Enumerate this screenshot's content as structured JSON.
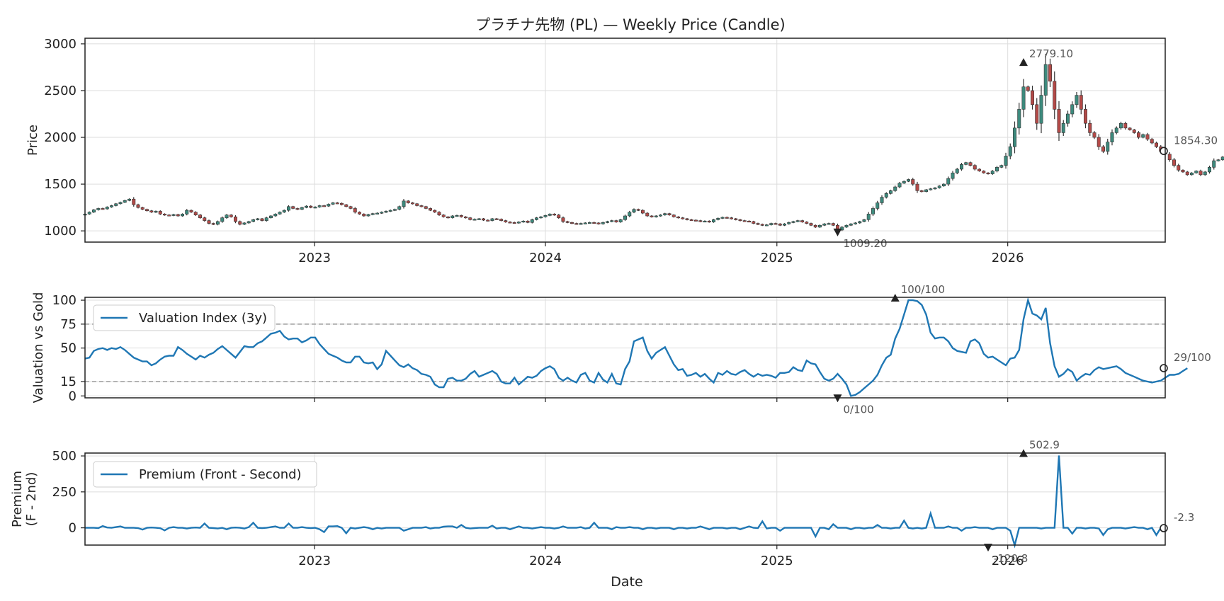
{
  "figure_title": "プラチナ先物 (PL) — Weekly Price (Candle)",
  "shared_xlabel": "Date",
  "colors": {
    "up": "#3d8a7d",
    "down": "#b44a48",
    "wick": "#333333",
    "line": "#1f77b4",
    "grid": "#dddddd",
    "threshold": "#999999",
    "annotation": "#555555"
  },
  "chart_data": [
    {
      "type": "candlestick",
      "title": "プラチナ先物 (PL) — Weekly Price (Candle)",
      "xlabel": "",
      "ylabel": "Price",
      "x_range": [
        "2022-01-03",
        "2026-09-07"
      ],
      "x_ticks": [
        "2023",
        "2024",
        "2025",
        "2026"
      ],
      "ylim": [
        880,
        3060
      ],
      "y_ticks": [
        1000,
        1500,
        2000,
        2500,
        3000
      ],
      "grid": true,
      "annotations": {
        "max": {
          "date": "2026-01-26",
          "value": 2779.1,
          "label": "2779.10"
        },
        "min": {
          "date": "2025-04-07",
          "value": 1009.2,
          "label": "1009.20"
        },
        "last": {
          "date": "2026-09-07",
          "value": 1854.3,
          "label": "1854.30"
        }
      },
      "close": [
        1180,
        1200,
        1225,
        1240,
        1235,
        1255,
        1270,
        1290,
        1305,
        1325,
        1340,
        1280,
        1250,
        1230,
        1215,
        1200,
        1210,
        1180,
        1170,
        1165,
        1175,
        1160,
        1180,
        1220,
        1200,
        1170,
        1140,
        1110,
        1080,
        1070,
        1100,
        1140,
        1170,
        1150,
        1100,
        1070,
        1085,
        1100,
        1120,
        1130,
        1110,
        1140,
        1160,
        1180,
        1200,
        1220,
        1260,
        1240,
        1230,
        1250,
        1265,
        1250,
        1255,
        1270,
        1265,
        1285,
        1300,
        1295,
        1280,
        1260,
        1240,
        1200,
        1180,
        1160,
        1175,
        1185,
        1190,
        1200,
        1210,
        1220,
        1230,
        1260,
        1320,
        1300,
        1290,
        1270,
        1260,
        1240,
        1220,
        1200,
        1170,
        1150,
        1140,
        1160,
        1165,
        1150,
        1140,
        1120,
        1125,
        1130,
        1115,
        1110,
        1130,
        1125,
        1110,
        1095,
        1090,
        1085,
        1095,
        1105,
        1090,
        1120,
        1140,
        1150,
        1165,
        1180,
        1170,
        1140,
        1100,
        1090,
        1080,
        1075,
        1080,
        1085,
        1090,
        1085,
        1075,
        1090,
        1100,
        1110,
        1095,
        1120,
        1160,
        1200,
        1230,
        1220,
        1190,
        1160,
        1150,
        1160,
        1170,
        1185,
        1170,
        1150,
        1140,
        1130,
        1120,
        1115,
        1110,
        1100,
        1105,
        1095,
        1120,
        1135,
        1145,
        1140,
        1130,
        1120,
        1110,
        1105,
        1100,
        1080,
        1070,
        1060,
        1065,
        1080,
        1075,
        1060,
        1075,
        1090,
        1100,
        1110,
        1095,
        1080,
        1060,
        1040,
        1060,
        1075,
        1080,
        1060,
        1009,
        1040,
        1060,
        1075,
        1085,
        1100,
        1120,
        1180,
        1240,
        1300,
        1360,
        1400,
        1430,
        1470,
        1510,
        1530,
        1550,
        1500,
        1430,
        1420,
        1440,
        1450,
        1460,
        1480,
        1500,
        1560,
        1620,
        1660,
        1710,
        1730,
        1700,
        1660,
        1640,
        1620,
        1610,
        1640,
        1680,
        1700,
        1800,
        1900,
        2100,
        2300,
        2540,
        2500,
        2350,
        2150,
        2450,
        2779,
        2600,
        2300,
        2050,
        2150,
        2250,
        2350,
        2450,
        2300,
        2150,
        2050,
        2000,
        1900,
        1850,
        1950,
        2050,
        2100,
        2150,
        2100,
        2080,
        2050,
        2000,
        2030,
        1980,
        1940,
        1900,
        1850,
        1820,
        1760,
        1700,
        1650,
        1630,
        1600,
        1620,
        1640,
        1600,
        1630,
        1680,
        1750,
        1760,
        1790,
        1820,
        1854.3
      ]
    },
    {
      "type": "line",
      "title": "",
      "xlabel": "",
      "ylabel": "Valuation vs Gold",
      "x_range": [
        "2022-01-03",
        "2026-09-07"
      ],
      "ylim": [
        -2,
        103
      ],
      "y_ticks": [
        0,
        15,
        50,
        75,
        100
      ],
      "thresholds": [
        15,
        75
      ],
      "grid": true,
      "legend": {
        "placement": "top-left",
        "label": "Valuation Index (3y)"
      },
      "series": [
        {
          "name": "Valuation Index (3y)",
          "values": [
            39,
            40,
            47,
            49,
            50,
            48,
            50,
            49,
            51,
            48,
            44,
            40,
            38,
            36,
            36,
            32,
            34,
            38,
            41,
            42,
            42,
            51,
            48,
            44,
            41,
            38,
            42,
            40,
            43,
            45,
            49,
            52,
            48,
            44,
            40,
            46,
            52,
            51,
            51,
            55,
            57,
            61,
            65,
            66,
            68,
            62,
            59,
            60,
            60,
            56,
            58,
            61,
            61,
            54,
            49,
            44,
            42,
            40,
            37,
            35,
            35,
            41,
            41,
            35,
            34,
            35,
            28,
            33,
            47,
            42,
            37,
            32,
            30,
            33,
            29,
            27,
            23,
            22,
            20,
            12,
            9,
            9,
            18,
            19,
            16,
            16,
            18,
            23,
            26,
            20,
            22,
            24,
            26,
            23,
            15,
            13,
            13,
            19,
            12,
            16,
            20,
            19,
            21,
            26,
            29,
            31,
            28,
            19,
            16,
            19,
            16,
            14,
            22,
            24,
            16,
            14,
            24,
            17,
            14,
            23,
            13,
            12,
            28,
            36,
            57,
            59,
            61,
            47,
            39,
            45,
            48,
            51,
            42,
            33,
            27,
            28,
            21,
            22,
            24,
            20,
            23,
            18,
            14,
            24,
            22,
            26,
            23,
            22,
            25,
            27,
            23,
            20,
            23,
            21,
            22,
            21,
            19,
            24,
            24,
            25,
            30,
            27,
            26,
            37,
            34,
            33,
            25,
            18,
            16,
            18,
            23,
            18,
            12,
            0,
            1,
            4,
            8,
            12,
            16,
            22,
            32,
            40,
            43,
            60,
            70,
            85,
            100,
            100,
            99,
            95,
            85,
            66,
            60,
            61,
            61,
            57,
            50,
            47,
            46,
            45,
            57,
            59,
            55,
            44,
            40,
            41,
            38,
            35,
            32,
            39,
            40,
            48,
            80,
            100,
            86,
            84,
            80,
            92,
            55,
            31,
            20,
            23,
            28,
            25,
            16,
            20,
            23,
            22,
            27,
            30,
            28,
            29,
            30,
            31,
            28,
            24,
            22,
            20,
            18,
            16,
            15,
            14,
            15,
            16,
            19,
            22,
            22,
            23,
            26,
            29
          ]
        }
      ],
      "annotations": {
        "max": {
          "date": "2025-07-07",
          "value": 100,
          "label": "100/100"
        },
        "min": {
          "date": "2025-04-07",
          "value": 0,
          "label": "0/100"
        },
        "last": {
          "date": "2026-09-07",
          "value": 29,
          "label": "29/100"
        }
      }
    },
    {
      "type": "line",
      "title": "",
      "xlabel": "Date",
      "ylabel": "Premium\n(F - 2nd)",
      "x_range": [
        "2022-01-03",
        "2026-09-07"
      ],
      "x_ticks": [
        "2023",
        "2024",
        "2025",
        "2026"
      ],
      "ylim": [
        -120,
        520
      ],
      "y_ticks": [
        0,
        250,
        500
      ],
      "grid": true,
      "legend": {
        "placement": "top-left",
        "label": "Premium (Front - Second)"
      },
      "series": [
        {
          "name": "Premium (Front - Second)",
          "values": [
            0,
            0,
            0,
            -2,
            12,
            2,
            0,
            5,
            10,
            0,
            0,
            0,
            -2,
            -12,
            0,
            2,
            0,
            -3,
            -18,
            0,
            5,
            0,
            0,
            -5,
            0,
            2,
            0,
            30,
            0,
            -2,
            -5,
            0,
            -10,
            0,
            2,
            0,
            -5,
            5,
            35,
            0,
            -2,
            0,
            5,
            10,
            0,
            0,
            30,
            0,
            0,
            5,
            0,
            -2,
            0,
            -10,
            -30,
            10,
            10,
            12,
            0,
            -38,
            0,
            -5,
            0,
            5,
            0,
            -10,
            0,
            -5,
            0,
            0,
            0,
            0,
            -20,
            -10,
            0,
            0,
            0,
            5,
            -5,
            0,
            0,
            8,
            10,
            10,
            0,
            20,
            0,
            -5,
            -2,
            0,
            0,
            0,
            15,
            -5,
            0,
            0,
            -10,
            0,
            10,
            0,
            0,
            -5,
            0,
            5,
            0,
            0,
            -5,
            0,
            10,
            0,
            0,
            0,
            5,
            -5,
            0,
            35,
            0,
            0,
            0,
            -10,
            5,
            0,
            0,
            5,
            0,
            0,
            -10,
            0,
            0,
            -5,
            0,
            0,
            0,
            -10,
            0,
            0,
            -5,
            0,
            0,
            10,
            0,
            -10,
            0,
            0,
            0,
            -5,
            0,
            0,
            -10,
            0,
            10,
            0,
            -2,
            45,
            -5,
            0,
            0,
            -20,
            0,
            0,
            0,
            0,
            0,
            0,
            0,
            -60,
            0,
            0,
            -10,
            25,
            0,
            0,
            0,
            -10,
            0,
            0,
            -5,
            0,
            0,
            20,
            0,
            0,
            -5,
            0,
            0,
            50,
            0,
            -5,
            0,
            -5,
            0,
            100,
            0,
            0,
            0,
            10,
            0,
            0,
            -20,
            0,
            0,
            5,
            0,
            0,
            0,
            -10,
            0,
            0,
            0,
            -20,
            -120.8,
            0,
            0,
            0,
            0,
            0,
            -5,
            0,
            0,
            0,
            502.9,
            0,
            0,
            -40,
            0,
            0,
            -5,
            0,
            0,
            -5,
            -50,
            -10,
            0,
            0,
            0,
            -5,
            0,
            5,
            0,
            0,
            -10,
            0,
            -50,
            0,
            -2.3
          ]
        }
      ],
      "annotations": {
        "max": {
          "date": "2026-01-26",
          "value": 502.9,
          "label": "502.9"
        },
        "min": {
          "date": "2025-12-01",
          "value": -120.8,
          "label": "-120.8"
        },
        "last": {
          "date": "2026-09-07",
          "value": -2.3,
          "label": "-2.3"
        }
      }
    }
  ]
}
